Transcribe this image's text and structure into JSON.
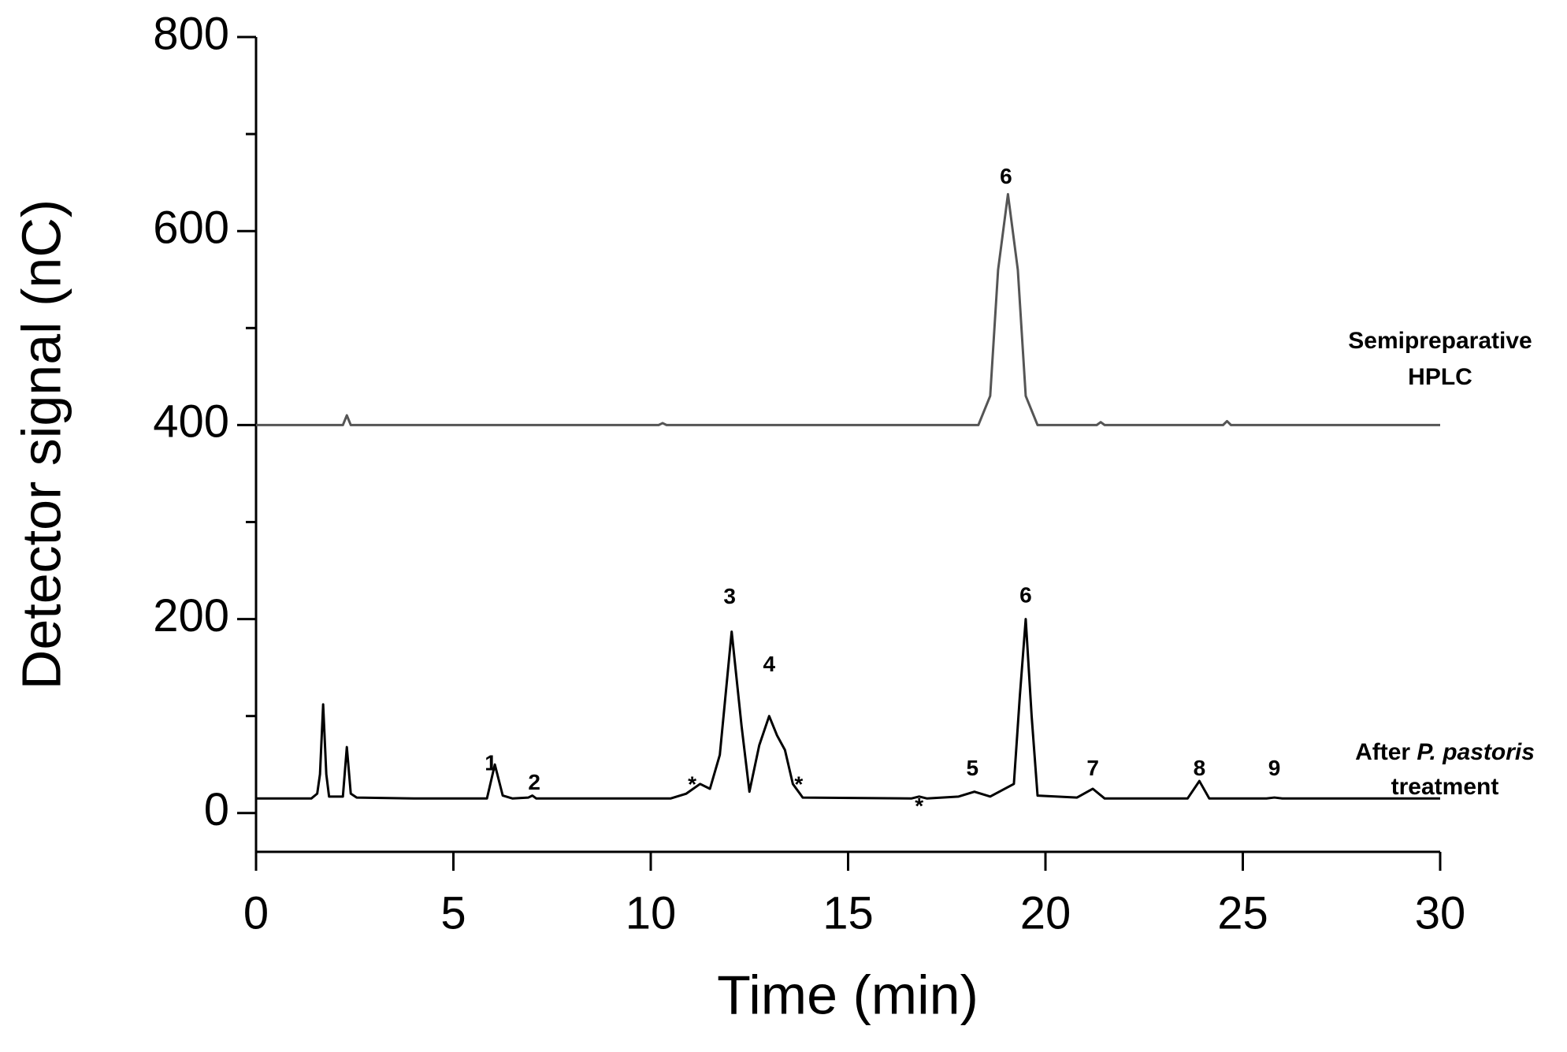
{
  "chart_data": {
    "type": "line",
    "x_label": "Time (min)",
    "y_label": "Detector signal (nC)",
    "xlim": [
      0,
      30
    ],
    "xticks": [
      0,
      5,
      10,
      15,
      20,
      25,
      30
    ],
    "ylim": [
      -40,
      800
    ],
    "yticks": [
      0,
      200,
      400,
      600,
      800
    ],
    "y_minor_ticks": [
      100,
      300,
      500,
      700
    ],
    "series": [
      {
        "name_lines": [
          [
            {
              "text": "Semipreparative"
            }
          ],
          [
            {
              "text": "HPLC"
            }
          ]
        ],
        "color": "#555555",
        "x": [
          0,
          2.2,
          2.3,
          2.4,
          10.2,
          10.3,
          10.4,
          18.3,
          18.6,
          18.8,
          19.05,
          19.3,
          19.5,
          19.8,
          21.3,
          21.4,
          21.5,
          24.5,
          24.6,
          24.7,
          30
        ],
        "values": [
          400,
          400,
          410,
          400,
          400,
          402,
          400,
          400,
          430,
          560,
          638,
          560,
          430,
          400,
          400,
          403,
          400,
          400,
          404,
          400,
          400
        ]
      },
      {
        "name_lines": [
          [
            {
              "text": "After "
            },
            {
              "text": "P. pastoris",
              "style": "italic"
            }
          ],
          [
            {
              "text": "treatment"
            }
          ]
        ],
        "color": "#000000",
        "x": [
          0,
          1.4,
          1.55,
          1.62,
          1.7,
          1.78,
          1.85,
          2.2,
          2.3,
          2.4,
          2.55,
          4,
          5.85,
          6.05,
          6.25,
          6.5,
          6.9,
          7.0,
          7.1,
          10.5,
          10.9,
          11.25,
          11.5,
          11.75,
          12.05,
          12.3,
          12.5,
          12.75,
          13.0,
          13.2,
          13.4,
          13.6,
          13.85,
          16.6,
          16.8,
          17,
          17.8,
          18.2,
          18.6,
          19.2,
          19.35,
          19.5,
          19.65,
          19.8,
          20.8,
          21.2,
          21.5,
          23.6,
          23.9,
          24.15,
          25.6,
          25.8,
          26,
          30
        ],
        "values": [
          15,
          15,
          20,
          40,
          112,
          40,
          17,
          17,
          68,
          20,
          16,
          15,
          15,
          50,
          18,
          15,
          16,
          18,
          15,
          15,
          20,
          30,
          25,
          60,
          187,
          90,
          22,
          70,
          100,
          80,
          65,
          30,
          16,
          15,
          17,
          15,
          17,
          22,
          17,
          30,
          120,
          200,
          100,
          18,
          16,
          25,
          15,
          15,
          33,
          15,
          15,
          16,
          15,
          15
        ]
      }
    ],
    "annotations": [
      {
        "text": "6",
        "x": 19.0,
        "y": 655
      },
      {
        "text": "1",
        "x": 5.95,
        "y": 50
      },
      {
        "text": "2",
        "x": 7.05,
        "y": 30
      },
      {
        "text": "*",
        "x": 11.05,
        "y": 28
      },
      {
        "text": "3",
        "x": 12.0,
        "y": 222
      },
      {
        "text": "4",
        "x": 13.0,
        "y": 152
      },
      {
        "text": "*",
        "x": 13.75,
        "y": 28
      },
      {
        "text": "*",
        "x": 16.8,
        "y": 6
      },
      {
        "text": "5",
        "x": 18.15,
        "y": 45
      },
      {
        "text": "6",
        "x": 19.5,
        "y": 223
      },
      {
        "text": "7",
        "x": 21.2,
        "y": 45
      },
      {
        "text": "8",
        "x": 23.9,
        "y": 45
      },
      {
        "text": "9",
        "x": 25.8,
        "y": 45
      }
    ]
  }
}
